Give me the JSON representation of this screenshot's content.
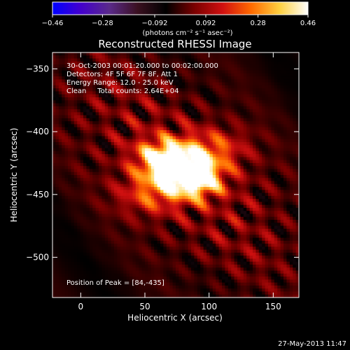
{
  "chart_data": {
    "type": "heatmap",
    "title": "Reconstructed RHESSI Image",
    "xlabel": "Heliocentric X (arcsec)",
    "ylabel": "Heliocentric Y (arcsec)",
    "xlim": [
      -22,
      170
    ],
    "ylim": [
      -532,
      -337
    ],
    "x_ticks": [
      0,
      50,
      100,
      150
    ],
    "y_ticks": [
      -350,
      -400,
      -450,
      -500
    ],
    "x_tick_labels": [
      "0",
      "50",
      "100",
      "150"
    ],
    "y_tick_labels": [
      "−350",
      "−400",
      "−450",
      "−500"
    ],
    "colorbar": {
      "min": -0.46,
      "max": 0.46,
      "ticks": [
        -0.46,
        -0.28,
        -0.092,
        0.092,
        0.28,
        0.46
      ],
      "tick_labels": [
        "−0.46",
        "−0.28",
        "−0.092",
        "0.092",
        "0.28",
        "0.46"
      ],
      "unit_label": "(photons cm⁻² s⁻¹ asec⁻²)",
      "colormap": [
        "#0000ff",
        "#4400cc",
        "#5a2a8a",
        "#3a1020",
        "#000000",
        "#7a0000",
        "#d01010",
        "#ff6a00",
        "#ffd040",
        "#ffffff"
      ]
    },
    "annotations": [
      "30-Oct-2003 00:01:20.000 to 00:02:00.000",
      "Detectors: 4F 5F 6F 7F 8F, Att 1",
      "Energy Range: 12.0 - 25.0 keV",
      "Clean     Total counts: 2.64E+04"
    ],
    "peak_label": "Position of Peak = [84,-435]",
    "peak": {
      "x": 84,
      "y": -435,
      "value": 0.46
    },
    "sources": [
      {
        "x": 76,
        "y": -428,
        "amp": 0.46,
        "sx": 16,
        "sy": 12
      },
      {
        "x": 90,
        "y": -440,
        "amp": 0.36,
        "sx": 14,
        "sy": 10
      },
      {
        "x": 60,
        "y": -420,
        "amp": 0.22,
        "sx": 14,
        "sy": 10
      },
      {
        "x": 55,
        "y": -450,
        "amp": 0.2,
        "sx": 18,
        "sy": 12
      },
      {
        "x": 105,
        "y": -415,
        "amp": 0.18,
        "sx": 18,
        "sy": 12
      }
    ]
  },
  "footer": {
    "timestamp": "27-May-2013 11:47"
  }
}
